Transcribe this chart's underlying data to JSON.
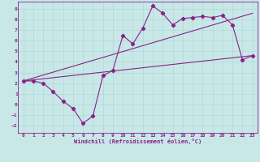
{
  "xlabel": "Windchill (Refroidissement éolien,°C)",
  "bg_color": "#c8e8e8",
  "grid_color": "#b0d8d8",
  "line_color": "#882288",
  "xlim": [
    -0.5,
    23.5
  ],
  "ylim": [
    -2.7,
    9.7
  ],
  "xticks": [
    0,
    1,
    2,
    3,
    4,
    5,
    6,
    7,
    8,
    9,
    10,
    11,
    12,
    13,
    14,
    15,
    16,
    17,
    18,
    19,
    20,
    21,
    22,
    23
  ],
  "yticks": [
    -2,
    -1,
    0,
    1,
    2,
    3,
    4,
    5,
    6,
    7,
    8,
    9
  ],
  "line1_x": [
    0,
    1,
    2,
    3,
    4,
    5,
    6,
    7,
    8,
    9,
    10,
    11,
    12,
    13,
    14,
    15,
    16,
    17,
    18,
    19,
    20,
    21,
    22,
    23
  ],
  "line1_y": [
    2.2,
    2.2,
    2.0,
    1.2,
    0.3,
    -0.4,
    -1.8,
    -1.1,
    2.7,
    3.2,
    6.5,
    5.7,
    7.2,
    9.3,
    8.6,
    7.5,
    8.1,
    8.2,
    8.3,
    8.2,
    8.4,
    7.5,
    4.2,
    4.6
  ],
  "line2_x": [
    0,
    23
  ],
  "line2_y": [
    2.2,
    4.6
  ],
  "line3_x": [
    0,
    23
  ],
  "line3_y": [
    2.2,
    8.6
  ]
}
